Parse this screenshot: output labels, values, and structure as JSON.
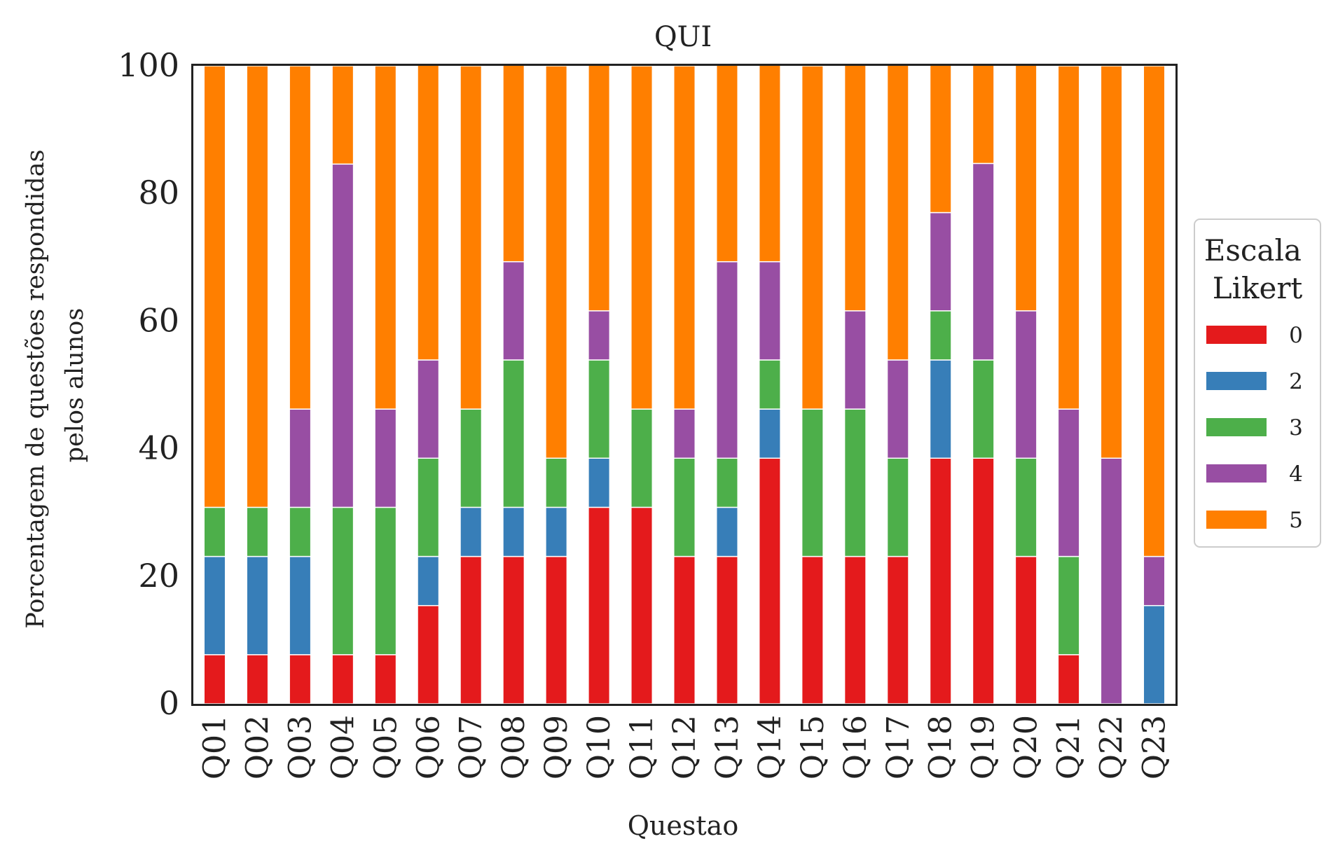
{
  "chart_data": {
    "type": "bar",
    "stacked": true,
    "title": "QUI",
    "xlabel": "Questao",
    "ylabel": [
      "Porcentagem de questões respondidas",
      "pelos alunos"
    ],
    "ylim": [
      0,
      100
    ],
    "yticks": [
      "0",
      "20",
      "40",
      "60",
      "80",
      "100"
    ],
    "grid": false,
    "legend": {
      "title": [
        "Escala",
        "Likert"
      ],
      "placement": "right"
    },
    "categories": [
      "Q01",
      "Q02",
      "Q03",
      "Q04",
      "Q05",
      "Q06",
      "Q07",
      "Q08",
      "Q09",
      "Q10",
      "Q11",
      "Q12",
      "Q13",
      "Q14",
      "Q15",
      "Q16",
      "Q17",
      "Q18",
      "Q19",
      "Q20",
      "Q21",
      "Q22",
      "Q23"
    ],
    "series": [
      {
        "name": "0",
        "color": "#e41a1c",
        "values": [
          7.7,
          7.7,
          7.7,
          7.7,
          7.7,
          15.4,
          23.1,
          23.1,
          23.1,
          30.8,
          30.8,
          23.1,
          23.1,
          38.5,
          23.1,
          23.1,
          23.1,
          38.5,
          38.5,
          23.1,
          7.7,
          0,
          0
        ]
      },
      {
        "name": "2",
        "color": "#377eb8",
        "values": [
          15.4,
          15.4,
          15.4,
          0,
          0,
          7.7,
          7.7,
          7.7,
          7.7,
          7.7,
          0,
          0,
          7.7,
          7.7,
          0,
          0,
          0,
          15.4,
          0,
          0,
          0,
          0,
          15.4
        ]
      },
      {
        "name": "3",
        "color": "#4daf4a",
        "values": [
          7.7,
          7.7,
          7.7,
          23.1,
          23.1,
          15.4,
          15.4,
          23.1,
          7.7,
          15.4,
          15.4,
          15.4,
          7.7,
          7.7,
          23.1,
          23.1,
          15.4,
          7.7,
          15.4,
          15.4,
          15.4,
          0,
          0
        ]
      },
      {
        "name": "4",
        "color": "#984ea3",
        "values": [
          0,
          0,
          15.4,
          53.8,
          15.4,
          15.4,
          0,
          15.4,
          0,
          7.7,
          0,
          7.7,
          30.8,
          15.4,
          0,
          15.4,
          15.4,
          15.4,
          30.8,
          23.1,
          23.1,
          38.5,
          7.7
        ]
      },
      {
        "name": "5",
        "color": "#ff7f00",
        "values": [
          69.2,
          69.2,
          53.8,
          15.4,
          53.8,
          46.2,
          53.8,
          30.8,
          61.5,
          38.5,
          53.8,
          53.8,
          30.8,
          30.8,
          53.8,
          38.5,
          46.2,
          23.1,
          15.4,
          38.5,
          53.8,
          61.5,
          76.9
        ]
      }
    ]
  }
}
